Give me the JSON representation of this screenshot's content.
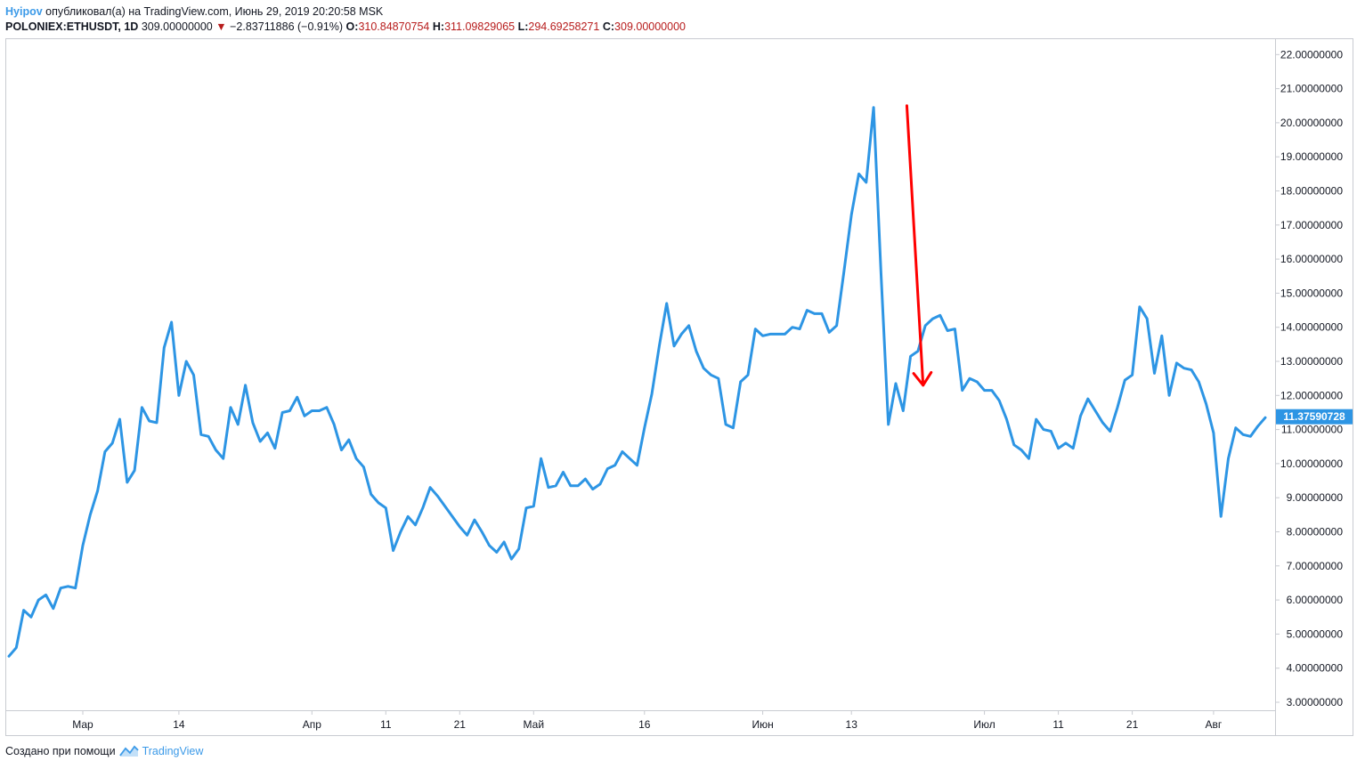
{
  "header": {
    "author": "Hyipov",
    "published": "опубликовал(а) на TradingView.com, Июнь 29, 2019 20:20:58 MSK"
  },
  "ohlc": {
    "symbol": "POLONIEX:ETHUSDT, 1D",
    "last": "309.00000000",
    "change": "−2.83711886 (−0.91%)",
    "o_label": "O:",
    "o": "310.84870754",
    "h_label": "H:",
    "h": "311.09829065",
    "l_label": "L:",
    "l": "294.69258271",
    "c_label": "C:",
    "c": "309.00000000"
  },
  "footer": {
    "created_with": "Создано при помощи",
    "brand": "TradingView"
  },
  "colors": {
    "line": "#2d95e4",
    "arrow": "#ff0000",
    "price_badge": "#2d95e4"
  },
  "chart_data": {
    "type": "line",
    "ylim": [
      2.8,
      22.5
    ],
    "price_label": "11.37590728",
    "yticks": [
      "3.00000000",
      "4.00000000",
      "5.00000000",
      "6.00000000",
      "7.00000000",
      "8.00000000",
      "9.00000000",
      "10.00000000",
      "11.00000000",
      "12.00000000",
      "13.00000000",
      "14.00000000",
      "15.00000000",
      "16.00000000",
      "17.00000000",
      "18.00000000",
      "19.00000000",
      "20.00000000",
      "21.00000000",
      "22.00000000"
    ],
    "xticks": [
      {
        "label": "Мар",
        "i": 10
      },
      {
        "label": "14",
        "i": 23
      },
      {
        "label": "Апр",
        "i": 41
      },
      {
        "label": "11",
        "i": 51
      },
      {
        "label": "21",
        "i": 61
      },
      {
        "label": "Май",
        "i": 71
      },
      {
        "label": "16",
        "i": 86
      },
      {
        "label": "Июн",
        "i": 102
      },
      {
        "label": "13",
        "i": 114
      },
      {
        "label": "Июл",
        "i": 132
      },
      {
        "label": "11",
        "i": 142
      },
      {
        "label": "21",
        "i": 152
      },
      {
        "label": "Авг",
        "i": 163
      }
    ],
    "values": [
      4.35,
      4.6,
      5.7,
      5.5,
      6.0,
      6.15,
      5.75,
      6.35,
      6.4,
      6.35,
      7.6,
      8.5,
      9.2,
      10.35,
      10.6,
      11.3,
      9.45,
      9.8,
      11.65,
      11.25,
      11.2,
      13.4,
      14.15,
      12.0,
      13.0,
      12.6,
      10.85,
      10.8,
      10.4,
      10.15,
      11.65,
      11.15,
      12.3,
      11.2,
      10.65,
      10.9,
      10.45,
      11.5,
      11.55,
      11.95,
      11.4,
      11.55,
      11.55,
      11.65,
      11.15,
      10.4,
      10.7,
      10.15,
      9.9,
      9.1,
      8.85,
      8.7,
      7.45,
      8.0,
      8.45,
      8.2,
      8.7,
      9.3,
      9.05,
      8.75,
      8.45,
      8.15,
      7.9,
      8.35,
      8.0,
      7.6,
      7.4,
      7.7,
      7.2,
      7.5,
      8.7,
      8.75,
      10.15,
      9.3,
      9.35,
      9.75,
      9.35,
      9.35,
      9.55,
      9.25,
      9.4,
      9.85,
      9.95,
      10.35,
      10.15,
      9.95,
      11.05,
      12.05,
      13.45,
      14.7,
      13.45,
      13.8,
      14.05,
      13.3,
      12.8,
      12.6,
      12.5,
      11.15,
      11.05,
      12.4,
      12.6,
      13.95,
      13.75,
      13.8,
      13.8,
      13.8,
      14.0,
      13.95,
      14.5,
      14.4,
      14.4,
      13.85,
      14.05,
      15.65,
      17.3,
      18.5,
      18.25,
      20.45,
      15.6,
      11.15,
      12.35,
      11.55,
      13.15,
      13.3,
      14.05,
      14.25,
      14.35,
      13.9,
      13.95,
      12.15,
      12.5,
      12.4,
      12.15,
      12.15,
      11.85,
      11.3,
      10.55,
      10.4,
      10.15,
      11.3,
      11.0,
      10.95,
      10.45,
      10.6,
      10.45,
      11.4,
      11.9,
      11.55,
      11.2,
      10.95,
      11.65,
      12.45,
      12.6,
      14.6,
      14.25,
      12.65,
      13.75,
      12.0,
      12.95,
      12.8,
      12.75,
      12.4,
      11.75,
      10.9,
      8.45,
      10.15,
      11.05,
      10.85,
      10.8,
      11.1,
      11.35
    ],
    "annotation": {
      "from_i": 121.5,
      "from_y": 20.5,
      "to_i": 123.7,
      "to_y": 12.3
    }
  }
}
